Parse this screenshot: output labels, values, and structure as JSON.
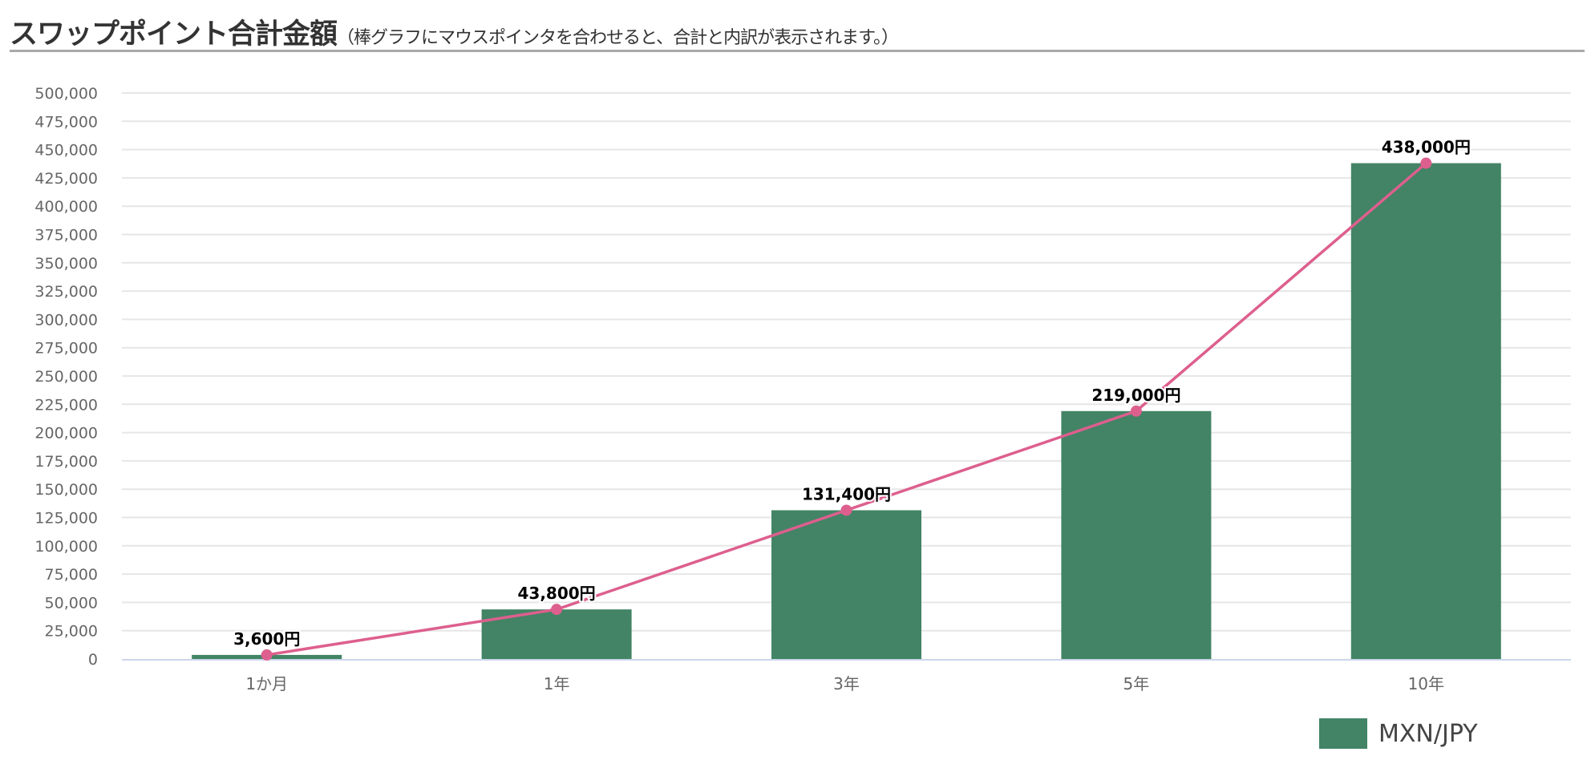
{
  "header": {
    "title": "スワップポイント合計金額",
    "subtitle": "（棒グラフにマウスポインタを合わせると、合計と内訳が表示されます。）"
  },
  "chart_data": {
    "type": "bar",
    "categories": [
      "1か月",
      "1年",
      "3年",
      "5年",
      "10年"
    ],
    "series": [
      {
        "name": "MXN/JPY",
        "type": "bar",
        "color": "#428465",
        "values": [
          3600,
          43800,
          131400,
          219000,
          438000
        ]
      },
      {
        "type": "line",
        "color": "#dd5f8e",
        "values": [
          3600,
          43800,
          131400,
          219000,
          438000
        ]
      }
    ],
    "data_labels": [
      "3,600円",
      "43,800円",
      "131,400円",
      "219,000円",
      "438,000円"
    ],
    "yticks": [
      "0",
      "25,000",
      "50,000",
      "75,000",
      "100,000",
      "125,000",
      "150,000",
      "175,000",
      "200,000",
      "225,000",
      "250,000",
      "275,000",
      "300,000",
      "325,000",
      "350,000",
      "375,000",
      "400,000",
      "425,000",
      "450,000",
      "475,000",
      "500,000"
    ],
    "ylim": [
      0,
      500000
    ],
    "grid": true,
    "legend": "bottom-right"
  }
}
